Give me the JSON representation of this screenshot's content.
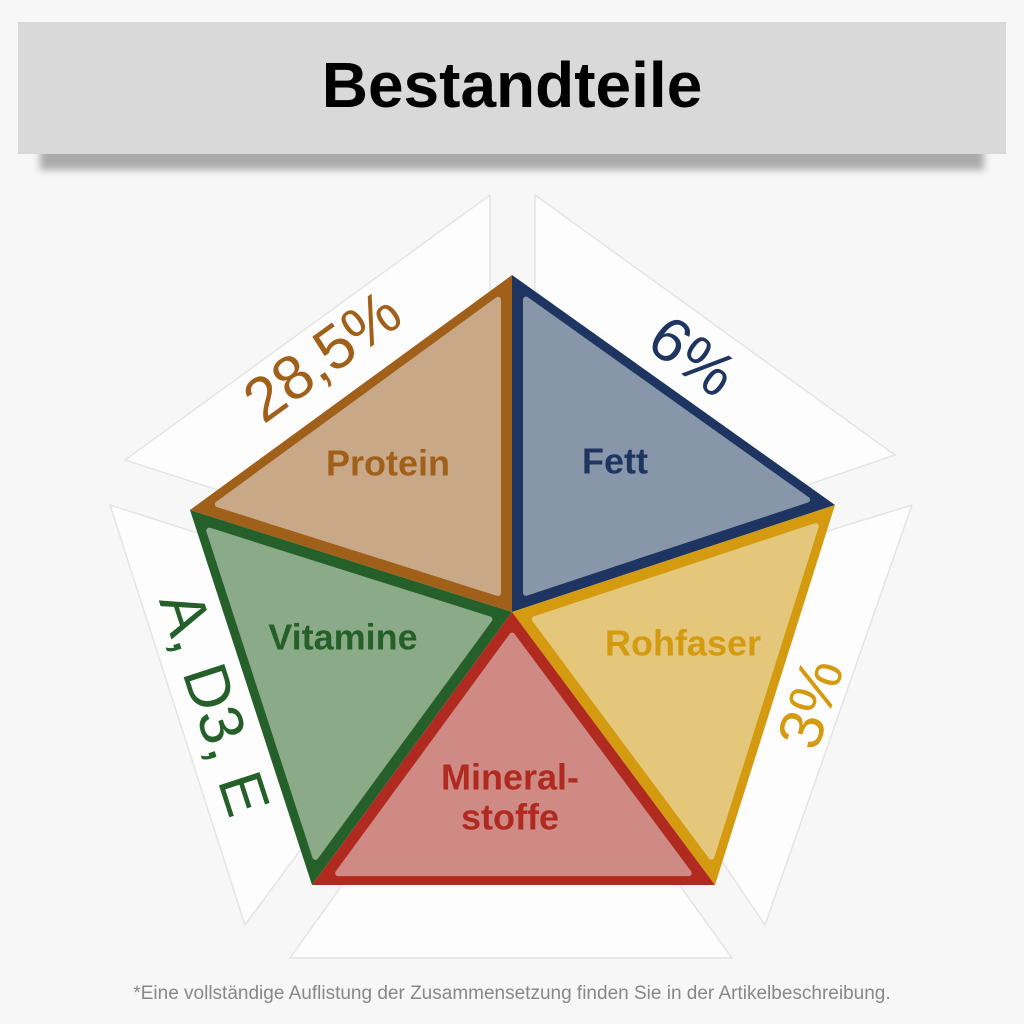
{
  "header": {
    "title": "Bestandteile"
  },
  "segments": [
    {
      "label_lines": [
        "Protein"
      ],
      "value": "28,5%"
    },
    {
      "label_lines": [
        "Fett"
      ],
      "value": "6%"
    },
    {
      "label_lines": [
        "Rohfaser"
      ],
      "value": "3%"
    },
    {
      "label_lines": [
        "Mineral-",
        "stoffe"
      ]
    },
    {
      "label_lines": [
        "Vitamine"
      ],
      "value": "A, D3, E"
    }
  ],
  "footnote": "*Eine vollständige Auflistung der Zusammensetzung finden Sie in der Artikelbeschreibung."
}
